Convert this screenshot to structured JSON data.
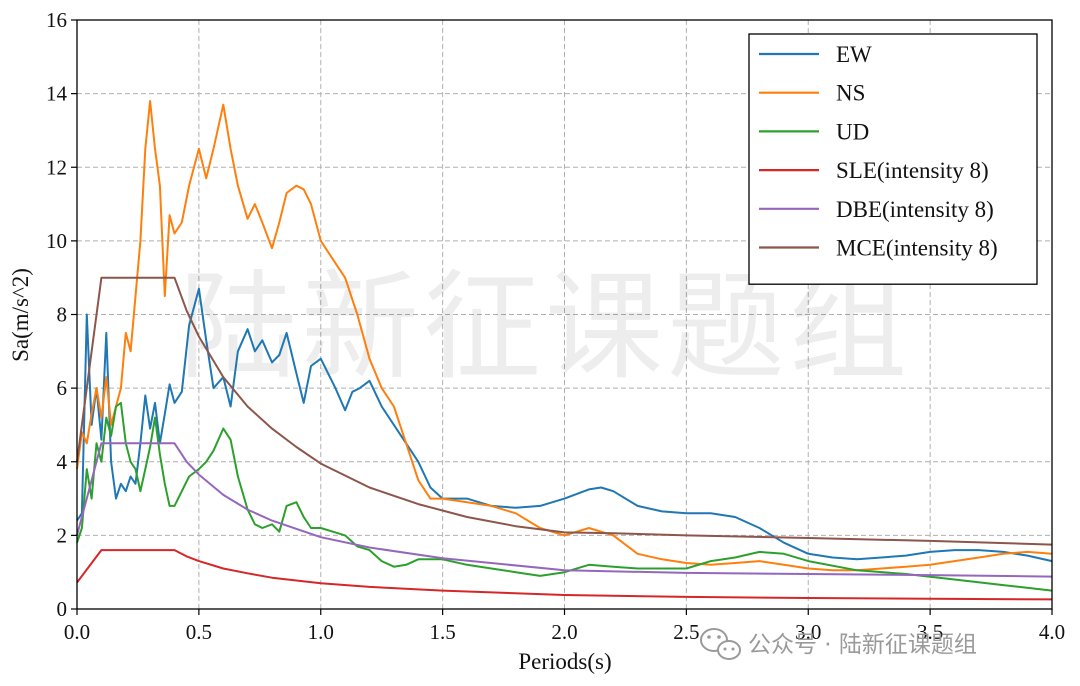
{
  "watermark": {
    "center_text": "陆新征课题组",
    "footer_text": "公众号 · 陆新征课题组",
    "icon": "wechat-icon"
  },
  "chart_data": {
    "type": "line",
    "title": "",
    "xlabel": "Periods(s)",
    "ylabel": "Sa(m/s^2)",
    "xlim": [
      0.0,
      4.0
    ],
    "ylim": [
      0,
      16
    ],
    "xticks": [
      "0.0",
      "0.5",
      "1.0",
      "1.5",
      "2.0",
      "2.5",
      "3.0",
      "3.5",
      "4.0"
    ],
    "yticks": [
      "0",
      "2",
      "4",
      "6",
      "8",
      "10",
      "12",
      "14",
      "16"
    ],
    "grid": true,
    "legend_position": "top-right",
    "series": [
      {
        "name": "EW",
        "color": "#1f77b4",
        "x": [
          0.0,
          0.02,
          0.04,
          0.06,
          0.08,
          0.1,
          0.12,
          0.14,
          0.16,
          0.18,
          0.2,
          0.22,
          0.24,
          0.26,
          0.28,
          0.3,
          0.32,
          0.34,
          0.36,
          0.38,
          0.4,
          0.43,
          0.46,
          0.5,
          0.53,
          0.56,
          0.6,
          0.63,
          0.66,
          0.7,
          0.73,
          0.76,
          0.8,
          0.83,
          0.86,
          0.9,
          0.93,
          0.96,
          1.0,
          1.03,
          1.06,
          1.1,
          1.13,
          1.16,
          1.2,
          1.25,
          1.3,
          1.35,
          1.4,
          1.45,
          1.5,
          1.55,
          1.6,
          1.7,
          1.8,
          1.9,
          2.0,
          2.1,
          2.15,
          2.2,
          2.3,
          2.4,
          2.5,
          2.6,
          2.7,
          2.8,
          2.9,
          3.0,
          3.1,
          3.2,
          3.3,
          3.4,
          3.5,
          3.6,
          3.7,
          3.8,
          3.9,
          4.0
        ],
        "y": [
          2.4,
          2.6,
          8.0,
          5.0,
          6.0,
          4.6,
          7.5,
          4.0,
          3.0,
          3.4,
          3.2,
          3.6,
          3.4,
          4.5,
          5.8,
          4.9,
          5.6,
          4.5,
          5.3,
          6.1,
          5.6,
          5.9,
          7.7,
          8.7,
          7.3,
          6.0,
          6.3,
          5.5,
          7.0,
          7.6,
          7.0,
          7.3,
          6.7,
          6.9,
          7.5,
          6.4,
          5.6,
          6.6,
          6.8,
          6.4,
          6.0,
          5.4,
          5.9,
          6.0,
          6.2,
          5.5,
          5.0,
          4.5,
          4.0,
          3.3,
          3.0,
          3.0,
          3.0,
          2.8,
          2.75,
          2.8,
          3.0,
          3.25,
          3.3,
          3.2,
          2.8,
          2.65,
          2.6,
          2.6,
          2.5,
          2.2,
          1.8,
          1.5,
          1.4,
          1.35,
          1.4,
          1.45,
          1.55,
          1.6,
          1.6,
          1.55,
          1.45,
          1.3
        ]
      },
      {
        "name": "NS",
        "color": "#ff7f0e",
        "x": [
          0.0,
          0.02,
          0.04,
          0.06,
          0.08,
          0.1,
          0.12,
          0.14,
          0.16,
          0.18,
          0.2,
          0.22,
          0.24,
          0.26,
          0.28,
          0.3,
          0.32,
          0.34,
          0.36,
          0.38,
          0.4,
          0.43,
          0.46,
          0.5,
          0.53,
          0.56,
          0.6,
          0.63,
          0.66,
          0.7,
          0.73,
          0.76,
          0.8,
          0.83,
          0.86,
          0.9,
          0.93,
          0.96,
          1.0,
          1.05,
          1.1,
          1.15,
          1.2,
          1.25,
          1.3,
          1.35,
          1.4,
          1.45,
          1.5,
          1.6,
          1.7,
          1.8,
          1.9,
          2.0,
          2.1,
          2.2,
          2.3,
          2.4,
          2.5,
          2.6,
          2.7,
          2.8,
          2.9,
          3.0,
          3.1,
          3.2,
          3.3,
          3.4,
          3.5,
          3.6,
          3.7,
          3.8,
          3.9,
          4.0
        ],
        "y": [
          3.8,
          4.8,
          4.5,
          5.3,
          6.0,
          5.2,
          6.3,
          5.0,
          5.5,
          6.0,
          7.5,
          7.0,
          8.5,
          10.0,
          12.5,
          13.8,
          12.5,
          11.5,
          8.5,
          10.7,
          10.2,
          10.5,
          11.5,
          12.5,
          11.7,
          12.5,
          13.7,
          12.5,
          11.5,
          10.6,
          11.0,
          10.5,
          9.8,
          10.5,
          11.3,
          11.5,
          11.4,
          11.0,
          10.0,
          9.5,
          9.0,
          8.0,
          6.8,
          6.0,
          5.5,
          4.5,
          3.5,
          3.0,
          3.0,
          2.9,
          2.8,
          2.6,
          2.2,
          2.0,
          2.2,
          2.0,
          1.5,
          1.35,
          1.25,
          1.2,
          1.25,
          1.3,
          1.2,
          1.1,
          1.05,
          1.05,
          1.1,
          1.15,
          1.2,
          1.3,
          1.4,
          1.5,
          1.55,
          1.5
        ]
      },
      {
        "name": "UD",
        "color": "#2ca02c",
        "x": [
          0.0,
          0.02,
          0.04,
          0.06,
          0.08,
          0.1,
          0.12,
          0.14,
          0.16,
          0.18,
          0.2,
          0.22,
          0.24,
          0.26,
          0.28,
          0.3,
          0.32,
          0.34,
          0.36,
          0.38,
          0.4,
          0.43,
          0.46,
          0.5,
          0.53,
          0.56,
          0.6,
          0.63,
          0.66,
          0.7,
          0.73,
          0.76,
          0.8,
          0.83,
          0.86,
          0.9,
          0.93,
          0.96,
          1.0,
          1.05,
          1.1,
          1.15,
          1.2,
          1.25,
          1.3,
          1.35,
          1.4,
          1.5,
          1.6,
          1.7,
          1.8,
          1.9,
          2.0,
          2.1,
          2.2,
          2.3,
          2.4,
          2.5,
          2.6,
          2.7,
          2.8,
          2.9,
          3.0,
          3.2,
          3.4,
          3.6,
          3.8,
          4.0
        ],
        "y": [
          1.8,
          2.2,
          3.8,
          3.0,
          4.5,
          4.0,
          5.2,
          4.7,
          5.5,
          5.6,
          4.5,
          4.0,
          3.8,
          3.2,
          3.8,
          4.4,
          5.2,
          4.2,
          3.4,
          2.8,
          2.8,
          3.2,
          3.6,
          3.8,
          4.0,
          4.3,
          4.9,
          4.6,
          3.6,
          2.7,
          2.3,
          2.2,
          2.3,
          2.1,
          2.8,
          2.9,
          2.5,
          2.2,
          2.2,
          2.1,
          2.0,
          1.7,
          1.6,
          1.3,
          1.15,
          1.2,
          1.35,
          1.35,
          1.2,
          1.1,
          1.0,
          0.9,
          1.0,
          1.2,
          1.15,
          1.1,
          1.1,
          1.1,
          1.3,
          1.4,
          1.55,
          1.5,
          1.3,
          1.05,
          0.95,
          0.8,
          0.65,
          0.5
        ]
      },
      {
        "name": "SLE(intensity 8)",
        "color": "#d62728",
        "x": [
          0.0,
          0.1,
          0.4,
          0.45,
          0.5,
          0.6,
          0.7,
          0.8,
          1.0,
          1.2,
          1.5,
          2.0,
          2.5,
          3.0,
          3.5,
          4.0
        ],
        "y": [
          0.72,
          1.6,
          1.6,
          1.43,
          1.3,
          1.1,
          0.97,
          0.85,
          0.7,
          0.6,
          0.5,
          0.38,
          0.33,
          0.3,
          0.28,
          0.26
        ]
      },
      {
        "name": "DBE(intensity 8)",
        "color": "#9467bd",
        "x": [
          0.0,
          0.1,
          0.4,
          0.45,
          0.5,
          0.6,
          0.7,
          0.8,
          1.0,
          1.2,
          1.5,
          2.0,
          2.5,
          3.0,
          3.5,
          4.0
        ],
        "y": [
          2.0,
          4.5,
          4.5,
          4.0,
          3.65,
          3.1,
          2.7,
          2.4,
          1.95,
          1.67,
          1.38,
          1.05,
          0.98,
          0.95,
          0.92,
          0.88
        ]
      },
      {
        "name": "MCE(intensity 8)",
        "color": "#8c564b",
        "x": [
          0.0,
          0.1,
          0.4,
          0.45,
          0.5,
          0.6,
          0.7,
          0.8,
          0.9,
          1.0,
          1.2,
          1.4,
          1.6,
          1.8,
          2.0,
          2.2,
          2.5,
          3.0,
          3.5,
          4.0
        ],
        "y": [
          4.0,
          9.0,
          9.0,
          8.1,
          7.4,
          6.3,
          5.5,
          4.9,
          4.4,
          3.95,
          3.3,
          2.85,
          2.5,
          2.25,
          2.08,
          2.06,
          2.0,
          1.93,
          1.85,
          1.75
        ]
      }
    ]
  }
}
